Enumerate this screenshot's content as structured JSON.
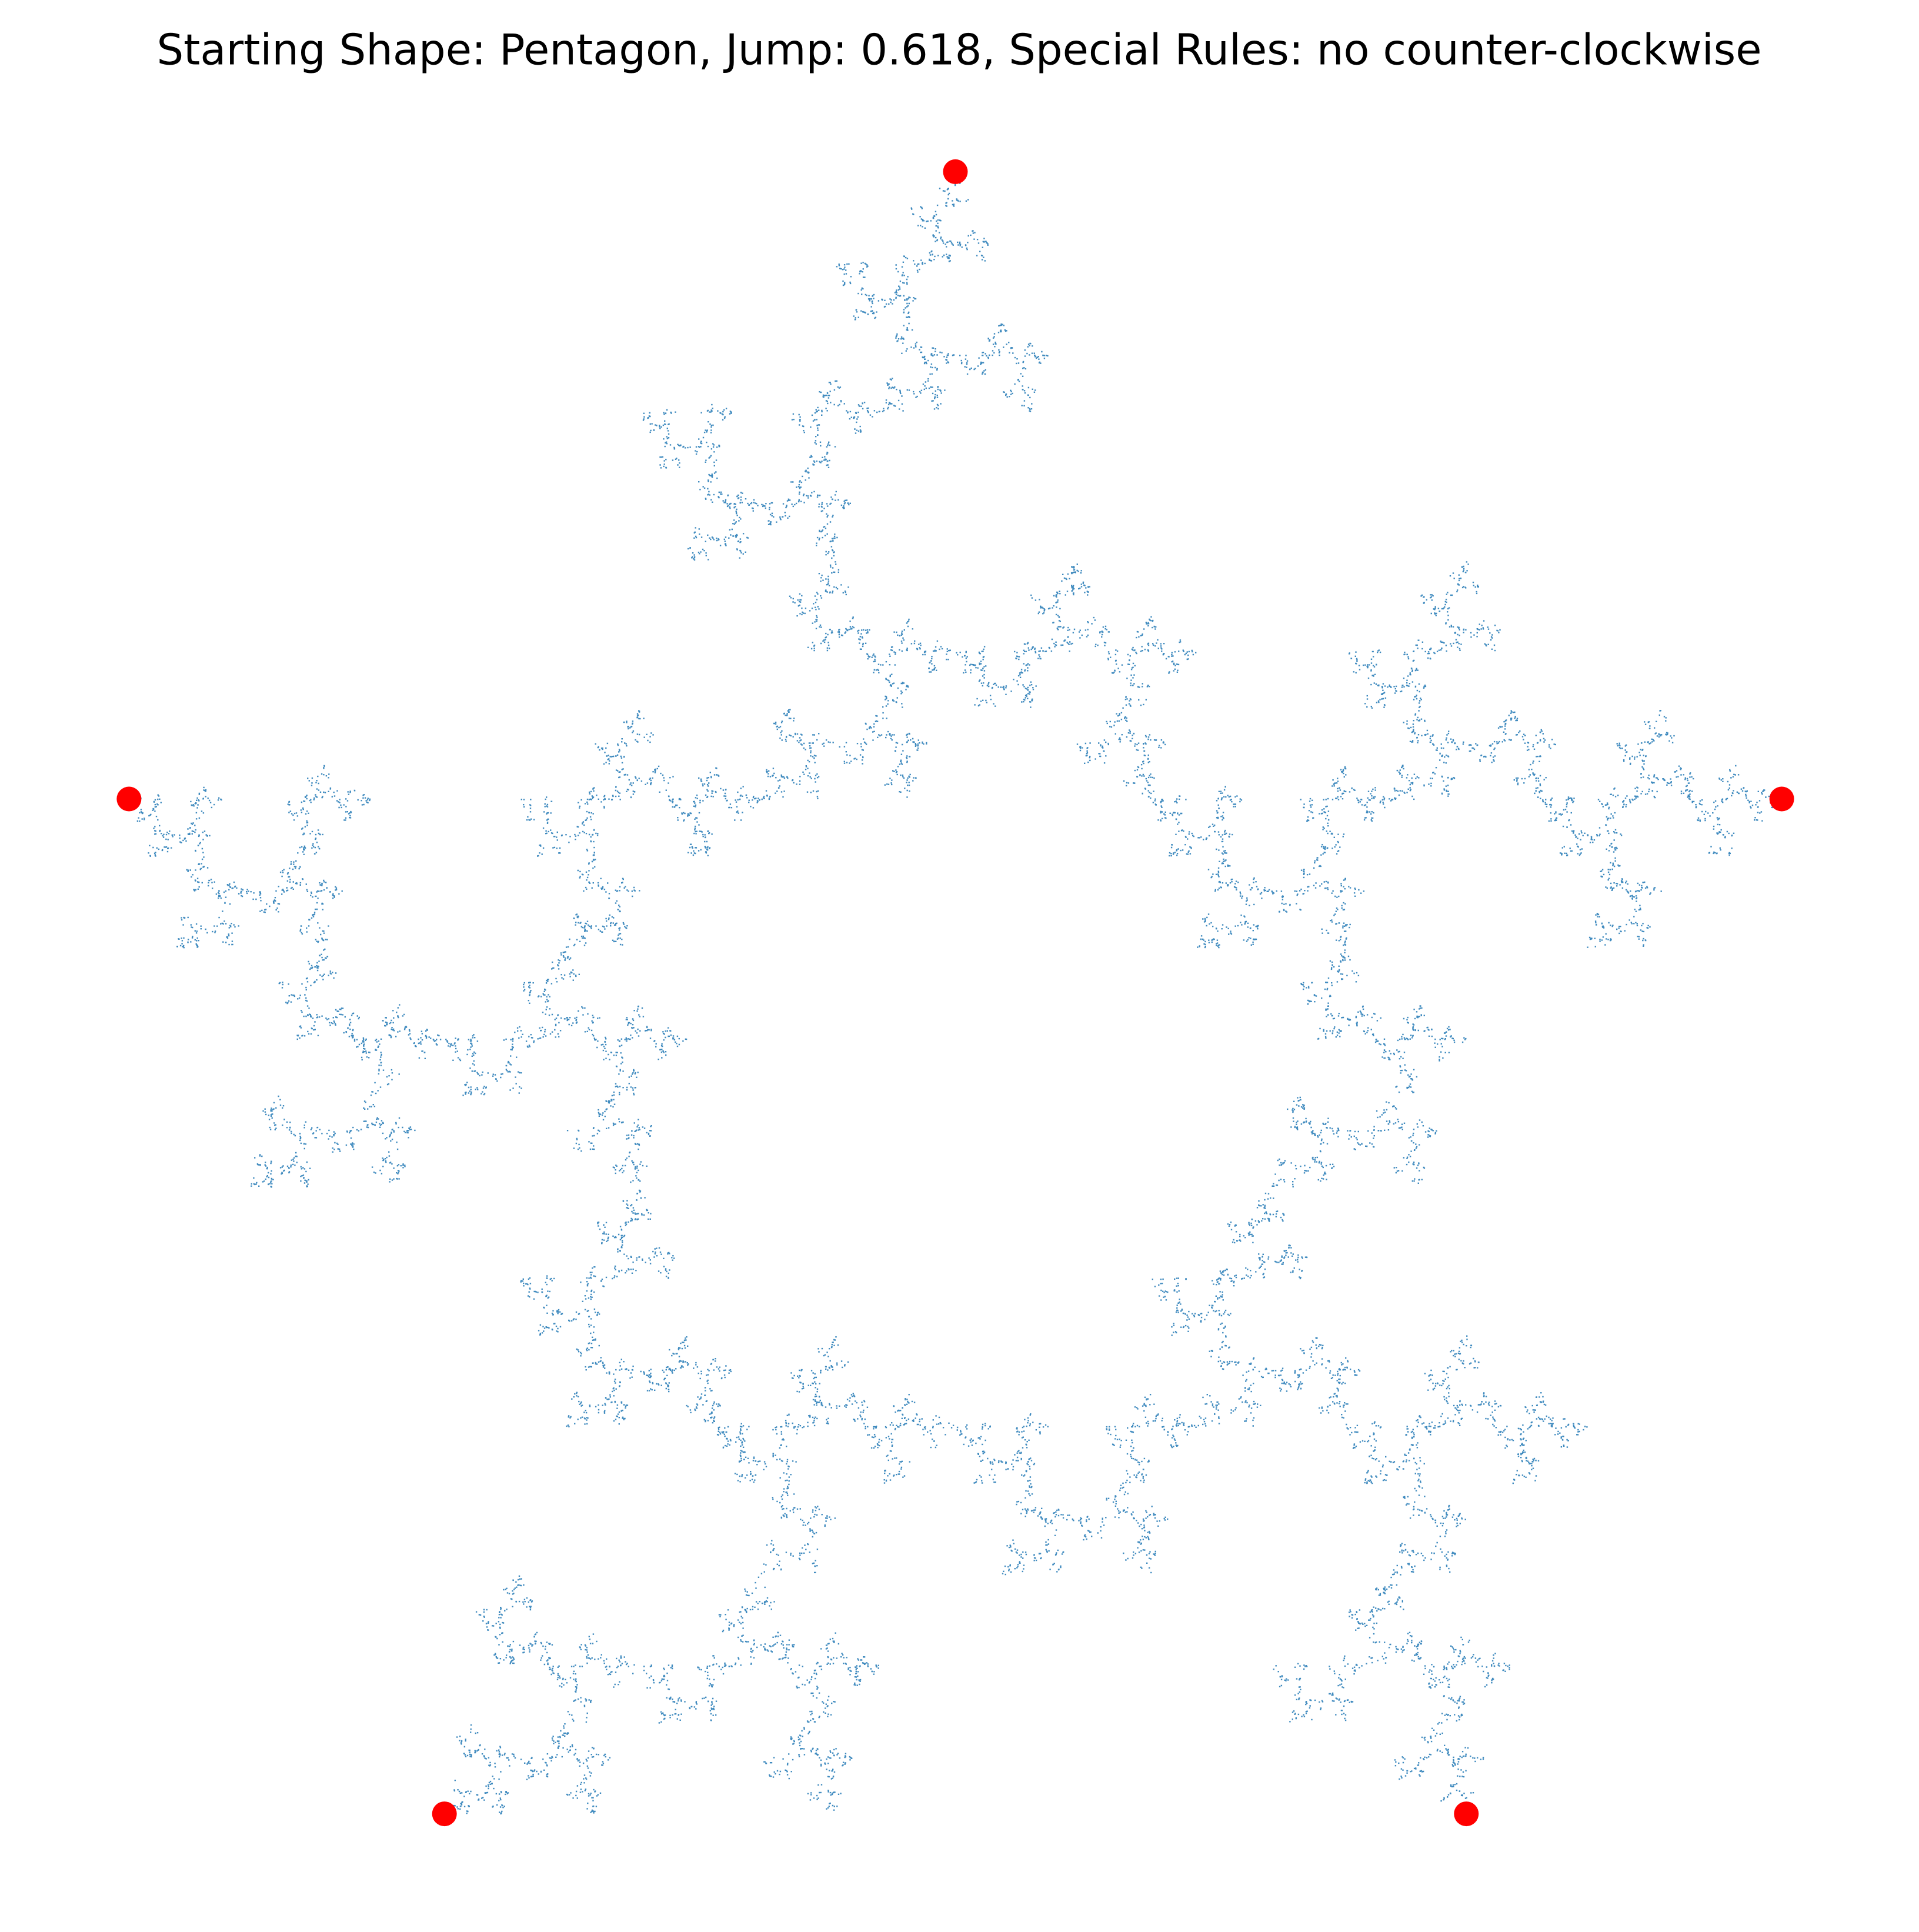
{
  "chart_data": {
    "type": "scatter",
    "title": "Starting Shape: Pentagon, Jump: 0.618, Special Rules: no counter-clockwise",
    "x": [
      0,
      -0.951,
      -0.588,
      0.588,
      0.951
    ],
    "y": [
      1,
      0.309,
      -0.809,
      -0.809,
      0.309
    ],
    "color": "#ff0000",
    "fractal_color": "#1f77b4",
    "jump": 0.618,
    "xlim": [
      -1.046,
      1.046
    ],
    "ylim": [
      -0.899,
      1.09
    ],
    "axis": false
  }
}
